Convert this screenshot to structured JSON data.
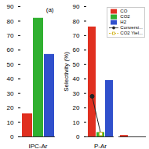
{
  "chart_data": [
    {
      "type": "bar",
      "annotation": "(a)",
      "categories": [
        "IPC-Ar"
      ],
      "series": [
        {
          "name": "CO",
          "color": "#e03020",
          "values": [
            16
          ]
        },
        {
          "name": "CO2",
          "color": "#30b030",
          "values": [
            82
          ]
        },
        {
          "name": "H2",
          "color": "#3050cc",
          "values": [
            57
          ]
        }
      ],
      "ylim": [
        0,
        90
      ],
      "yticks": [
        0,
        10,
        20,
        30,
        40,
        50,
        60,
        70,
        80,
        90
      ]
    },
    {
      "type": "bar",
      "ylabel": "Selectivity (%)",
      "categories": [
        "P-Ar",
        null
      ],
      "series": [
        {
          "name": "CO",
          "color": "#e03020",
          "values": [
            76,
            1
          ]
        },
        {
          "name": "CO2",
          "color": "#30b030",
          "values": [
            3,
            null
          ]
        },
        {
          "name": "H2",
          "color": "#3050cc",
          "values": [
            39,
            null
          ]
        },
        {
          "name": "Conversi...",
          "type": "line",
          "color": "#222222",
          "marker": "circle",
          "values": [
            28,
            null
          ]
        },
        {
          "name": "CO2 Yiel...",
          "type": "line",
          "color": "#ccaa00",
          "marker": "square",
          "line_style": "dashed",
          "values": [
            2,
            null
          ]
        }
      ],
      "ylim": [
        0,
        90
      ],
      "yticks": [
        0,
        10,
        20,
        30,
        40,
        50,
        60,
        70,
        80,
        90
      ],
      "legend": "upper right"
    }
  ]
}
